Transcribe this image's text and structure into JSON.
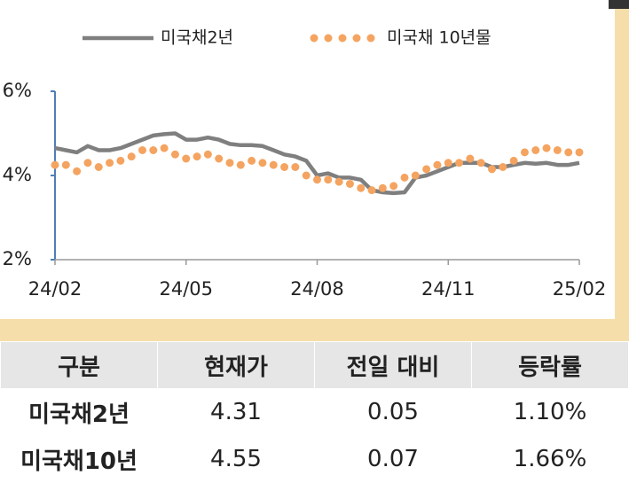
{
  "chart_data": {
    "type": "line",
    "categories": [
      "24/02",
      null,
      null,
      null,
      null,
      null,
      null,
      null,
      null,
      null,
      null,
      null,
      "24/05",
      null,
      null,
      null,
      null,
      null,
      null,
      null,
      null,
      null,
      null,
      null,
      "24/08",
      null,
      null,
      null,
      null,
      null,
      null,
      null,
      null,
      null,
      null,
      null,
      "24/11",
      null,
      null,
      null,
      null,
      null,
      null,
      null,
      null,
      null,
      null,
      null,
      "25/02"
    ],
    "series": [
      {
        "name": "미국채2년",
        "color": "#7f7f7f",
        "style": "line",
        "values": [
          4.65,
          4.6,
          4.55,
          4.7,
          4.6,
          4.6,
          4.65,
          4.75,
          4.85,
          4.95,
          4.98,
          5.0,
          4.85,
          4.85,
          4.9,
          4.85,
          4.75,
          4.72,
          4.72,
          4.7,
          4.6,
          4.5,
          4.45,
          4.35,
          4.0,
          4.05,
          3.95,
          3.95,
          3.9,
          3.65,
          3.6,
          3.58,
          3.6,
          3.95,
          4.0,
          4.1,
          4.2,
          4.3,
          4.3,
          4.3,
          4.2,
          4.2,
          4.25,
          4.3,
          4.28,
          4.3,
          4.25,
          4.25,
          4.3
        ]
      },
      {
        "name": "미국채 10년물",
        "color": "#f4a460",
        "style": "dots",
        "values": [
          4.25,
          4.25,
          4.1,
          4.3,
          4.2,
          4.3,
          4.35,
          4.45,
          4.6,
          4.6,
          4.65,
          4.5,
          4.4,
          4.45,
          4.5,
          4.4,
          4.3,
          4.25,
          4.35,
          4.3,
          4.25,
          4.2,
          4.2,
          4.0,
          3.9,
          3.9,
          3.85,
          3.8,
          3.7,
          3.65,
          3.7,
          3.75,
          3.95,
          4.0,
          4.15,
          4.25,
          4.3,
          4.3,
          4.4,
          4.3,
          4.15,
          4.2,
          4.35,
          4.55,
          4.6,
          4.65,
          4.6,
          4.55,
          4.55
        ]
      }
    ],
    "ylim": [
      2,
      6
    ],
    "yticks": [
      {
        "value": 2,
        "label": "2%"
      },
      {
        "value": 4,
        "label": "4%"
      },
      {
        "value": 6,
        "label": "6%"
      }
    ]
  },
  "table": {
    "header": [
      "구분",
      "현재가",
      "전일 대비",
      "등락률"
    ],
    "rows": [
      [
        "미국채2년",
        "4.31",
        "0.05",
        "1.10%"
      ],
      [
        "미국채10년",
        "4.55",
        "0.07",
        "1.66%"
      ]
    ]
  }
}
